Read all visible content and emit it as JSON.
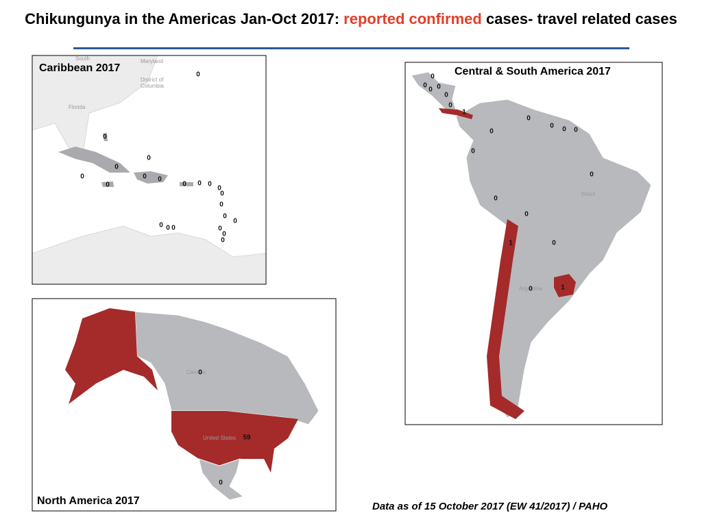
{
  "title": {
    "lead": "Chikungunya in the Americas Jan-Oct 2017:",
    "highlight": "reported confirmed",
    "tail": "cases- travel related cases"
  },
  "panels": [
    {
      "title": "Caribbean 2017",
      "place_labels": [
        "South",
        "Maryland",
        "District of",
        "Columbia",
        "Florida"
      ],
      "counts": [
        0,
        0,
        0,
        0,
        0,
        0,
        0,
        0,
        0,
        0,
        0,
        0,
        0,
        0,
        0,
        0,
        0,
        0,
        0,
        0,
        0,
        0
      ]
    },
    {
      "title": "Central & South America  2017",
      "place_labels": [
        "Brazil",
        "Argentina"
      ],
      "counts": [
        0,
        0,
        0,
        0,
        0,
        0,
        1,
        0,
        0,
        0,
        0,
        0,
        0,
        0,
        0,
        0,
        0,
        1,
        0,
        1
      ]
    },
    {
      "title": "North America  2017",
      "place_labels": [
        "Canada",
        "United States"
      ],
      "counts": [
        0,
        59,
        0
      ]
    }
  ],
  "footer": "Data as of 15 October 2017 (EW 41/2017) / PAHO"
}
